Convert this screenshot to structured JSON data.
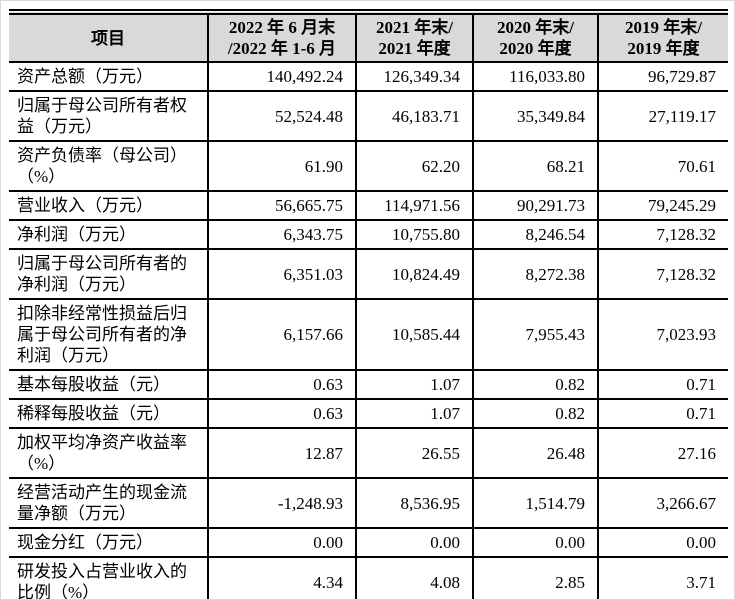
{
  "table": {
    "header": {
      "item_col": "项目",
      "periods": [
        "2022 年 6 月末\n/2022 年 1-6 月",
        "2021 年末/\n2021 年度",
        "2020 年末/\n2020 年度",
        "2019 年末/\n2019 年度"
      ]
    },
    "rows": [
      {
        "label": "资产总额（万元）",
        "values": [
          "140,492.24",
          "126,349.34",
          "116,033.80",
          "96,729.87"
        ]
      },
      {
        "label": "归属于母公司所有者权\n益（万元）",
        "values": [
          "52,524.48",
          "46,183.71",
          "35,349.84",
          "27,119.17"
        ]
      },
      {
        "label": "资产负债率（母公司）\n（%）",
        "values": [
          "61.90",
          "62.20",
          "68.21",
          "70.61"
        ]
      },
      {
        "label": "营业收入（万元）",
        "values": [
          "56,665.75",
          "114,971.56",
          "90,291.73",
          "79,245.29"
        ]
      },
      {
        "label": "净利润（万元）",
        "values": [
          "6,343.75",
          "10,755.80",
          "8,246.54",
          "7,128.32"
        ]
      },
      {
        "label": "归属于母公司所有者的\n净利润（万元）",
        "values": [
          "6,351.03",
          "10,824.49",
          "8,272.38",
          "7,128.32"
        ]
      },
      {
        "label": "扣除非经常性损益后归\n属于母公司所有者的净\n利润（万元）",
        "values": [
          "6,157.66",
          "10,585.44",
          "7,955.43",
          "7,023.93"
        ]
      },
      {
        "label": "基本每股收益（元）",
        "values": [
          "0.63",
          "1.07",
          "0.82",
          "0.71"
        ]
      },
      {
        "label": "稀释每股收益（元）",
        "values": [
          "0.63",
          "1.07",
          "0.82",
          "0.71"
        ]
      },
      {
        "label": "加权平均净资产收益率\n（%）",
        "values": [
          "12.87",
          "26.55",
          "26.48",
          "27.16"
        ]
      },
      {
        "label": "经营活动产生的现金流\n量净额（万元）",
        "values": [
          "-1,248.93",
          "8,536.95",
          "1,514.79",
          "3,266.67"
        ]
      },
      {
        "label": "现金分红（万元）",
        "values": [
          "0.00",
          "0.00",
          "0.00",
          "0.00"
        ]
      },
      {
        "label": "研发投入占营业收入的\n比例（%）",
        "values": [
          "4.34",
          "4.08",
          "2.85",
          "3.71"
        ]
      }
    ],
    "styles": {
      "header_bg": "#d9d9d9",
      "border_color": "#000000",
      "text_color": "#000000"
    }
  }
}
